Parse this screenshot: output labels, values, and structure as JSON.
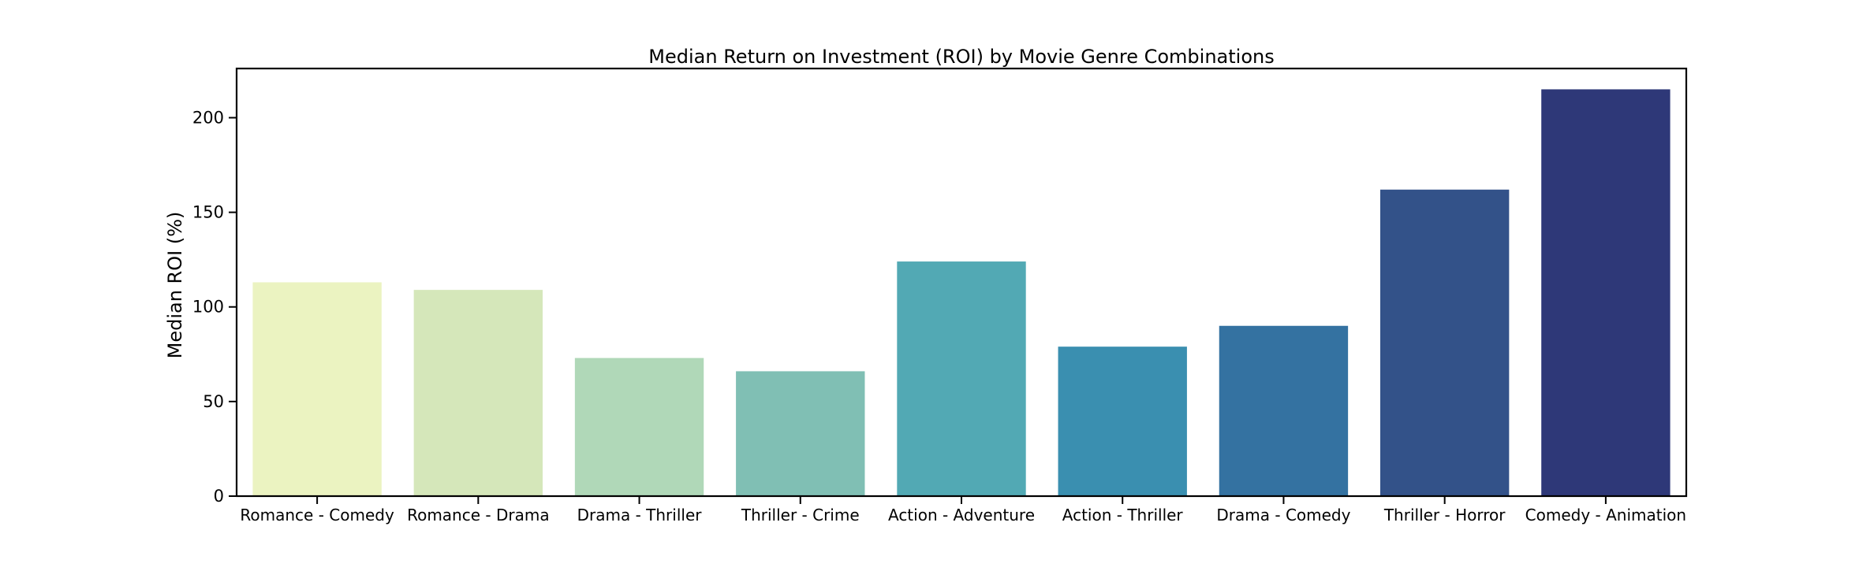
{
  "chart_data": {
    "type": "bar",
    "title": "Median Return on Investment (ROI) by Movie Genre Combinations",
    "xlabel": "",
    "ylabel": "Median ROI (%)",
    "categories": [
      "Romance - Comedy",
      "Romance - Drama",
      "Drama - Thriller",
      "Thriller - Crime",
      "Action - Adventure",
      "Action - Thriller",
      "Drama - Comedy",
      "Thriller - Horror",
      "Comedy - Animation"
    ],
    "values": [
      113,
      109,
      73,
      66,
      124,
      79,
      90,
      162,
      215
    ],
    "colors": [
      "#ebf3c1",
      "#d5e7ba",
      "#b0d8b8",
      "#80bfb4",
      "#52a9b4",
      "#3a8fb0",
      "#3472a1",
      "#335289",
      "#2e3878"
    ],
    "ylim": [
      0,
      226
    ],
    "yticks": [
      0,
      50,
      100,
      150,
      200
    ],
    "grid": false,
    "legend": "none"
  }
}
